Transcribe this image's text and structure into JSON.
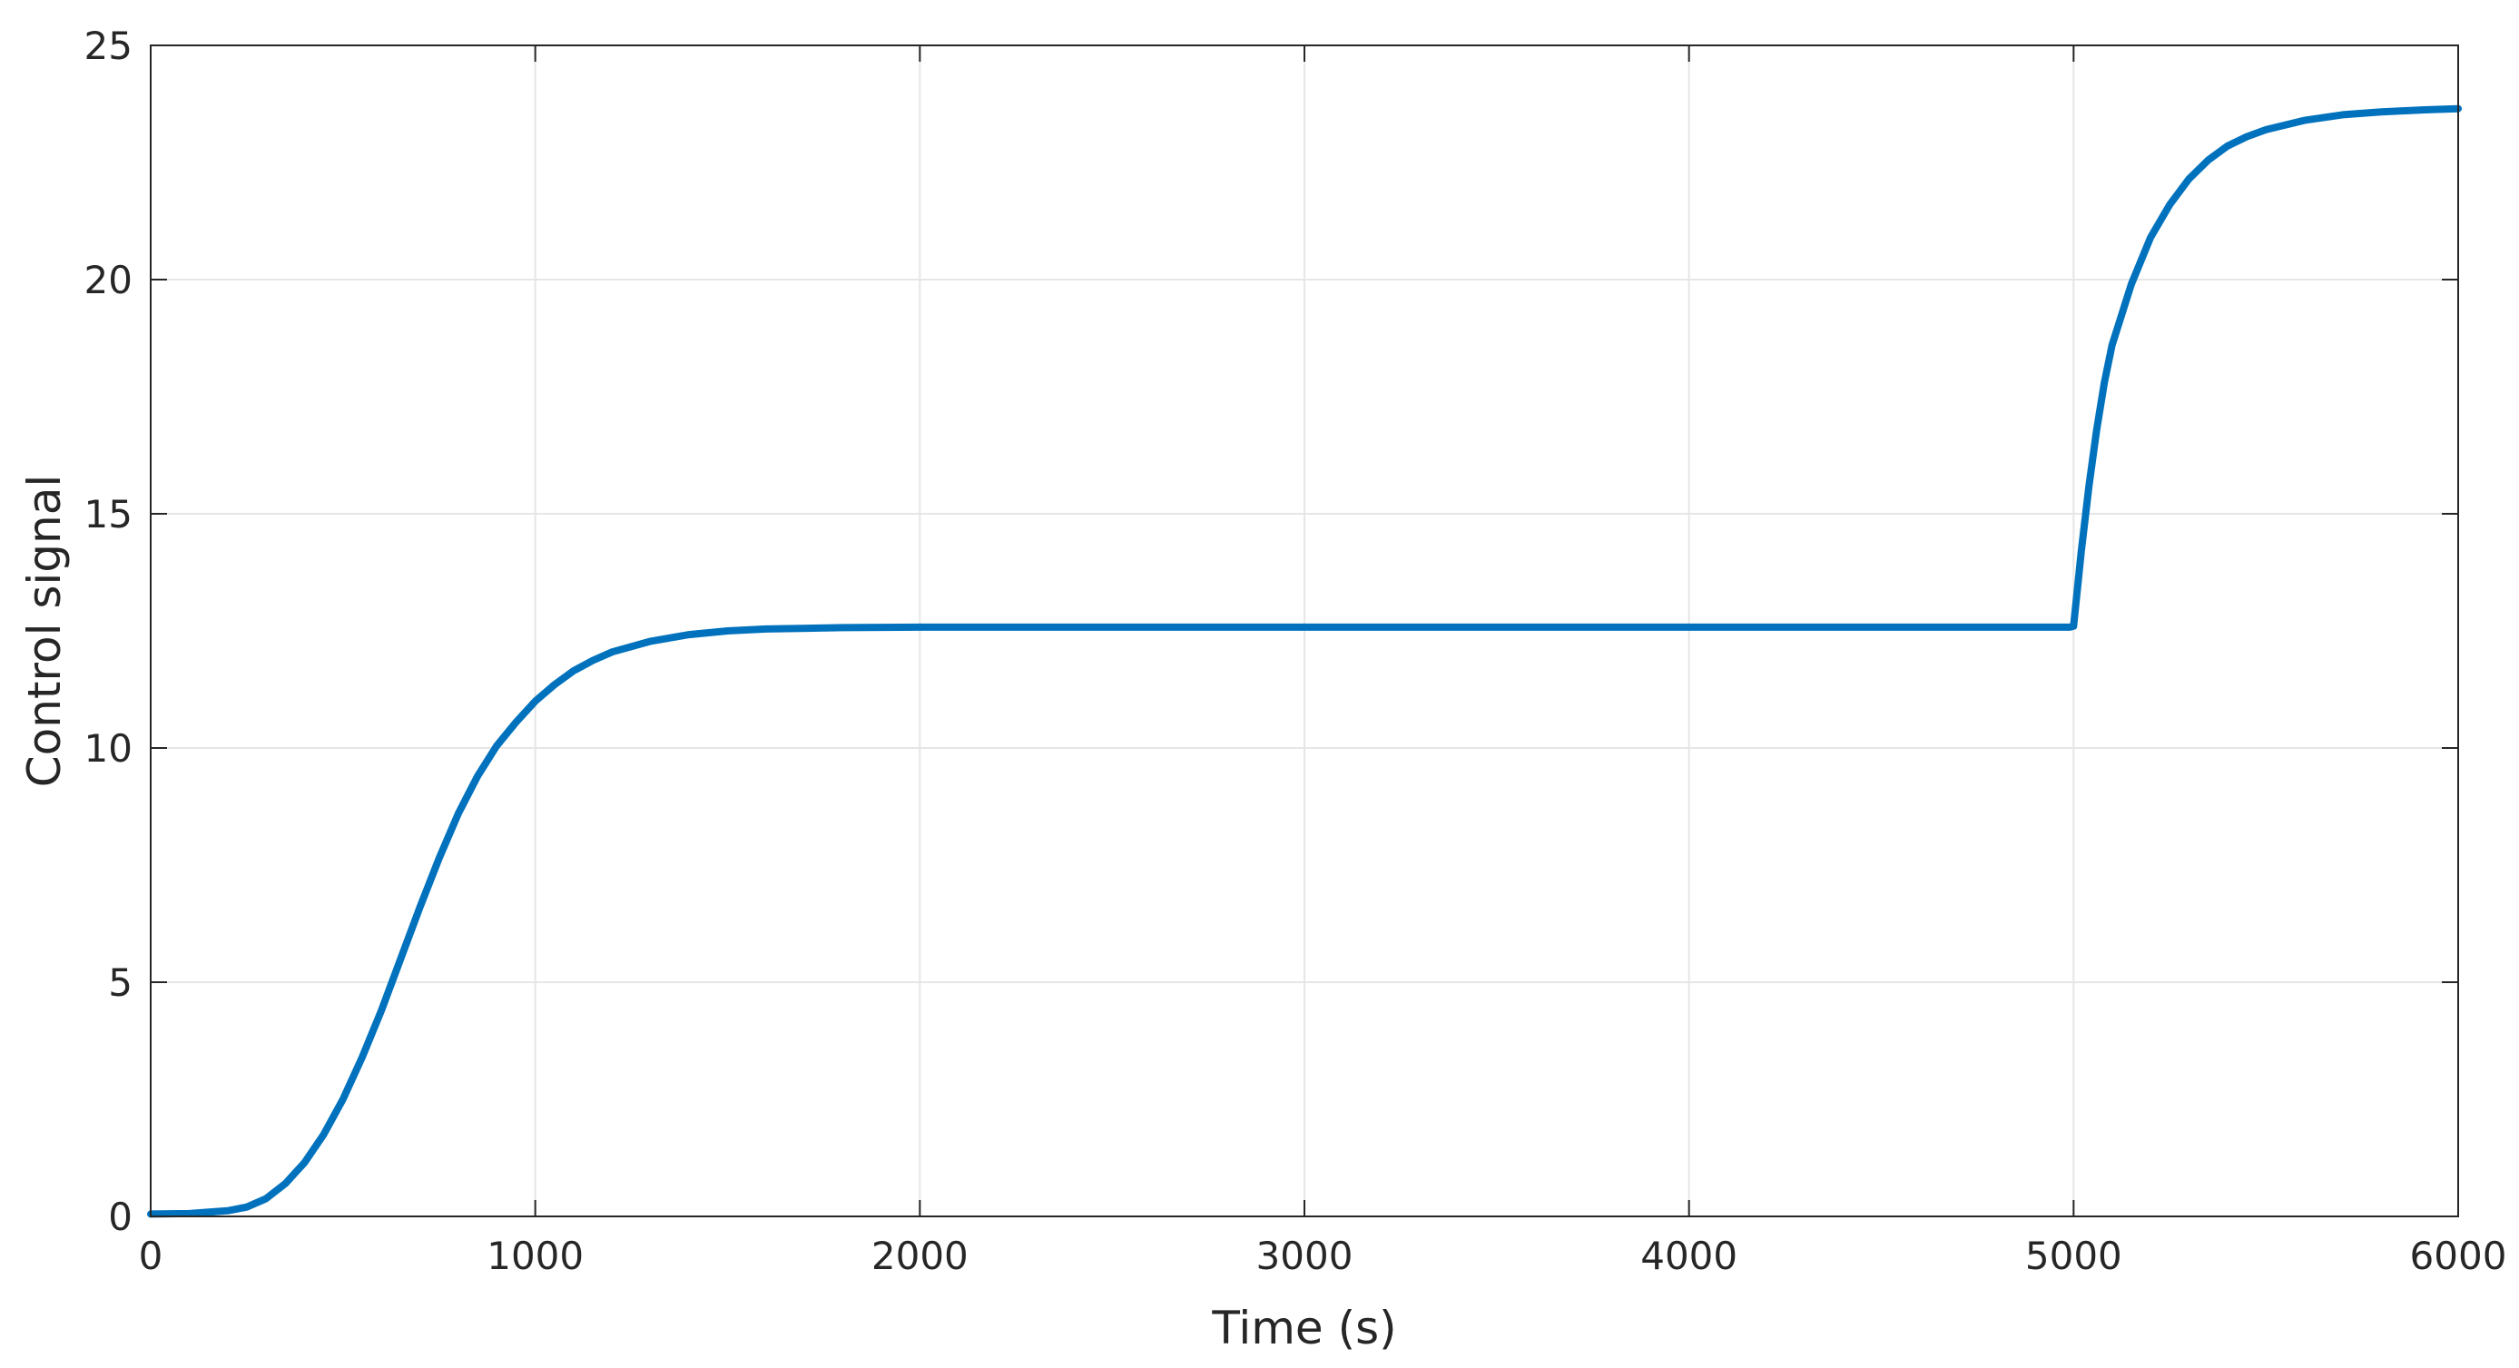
{
  "chart_data": {
    "type": "line",
    "title": "",
    "xlabel": "Time (s)",
    "ylabel": "Control signal",
    "xlim": [
      0,
      6000
    ],
    "ylim": [
      0,
      25
    ],
    "xticks": [
      0,
      1000,
      2000,
      3000,
      4000,
      5000,
      6000
    ],
    "xtick_labels": [
      "0",
      "1000",
      "2000",
      "3000",
      "4000",
      "5000",
      "6000"
    ],
    "yticks": [
      0,
      5,
      10,
      15,
      20,
      25
    ],
    "ytick_labels": [
      "0",
      "5",
      "10",
      "15",
      "20",
      "25"
    ],
    "grid": true,
    "legend": "none",
    "colors": {
      "line": "#0072BD",
      "axes": "#262626",
      "grid": "#e6e6e6"
    },
    "series": [
      {
        "x": [
          0,
          100,
          200,
          250,
          300,
          350,
          400,
          450,
          500,
          550,
          600,
          650,
          700,
          750,
          800,
          850,
          900,
          950,
          1000,
          1050,
          1100,
          1150,
          1200,
          1300,
          1400,
          1500,
          1600,
          1800,
          2000,
          2500,
          3000,
          4000,
          4990,
          5000,
          5020,
          5040,
          5060,
          5080,
          5100,
          5150,
          5200,
          5250,
          5300,
          5350,
          5400,
          5450,
          5500,
          5600,
          5700,
          5800,
          5900,
          6000
        ],
        "y": [
          0.05,
          0.06,
          0.12,
          0.2,
          0.38,
          0.7,
          1.15,
          1.75,
          2.5,
          3.4,
          4.4,
          5.5,
          6.6,
          7.65,
          8.6,
          9.4,
          10.05,
          10.55,
          11.0,
          11.35,
          11.65,
          11.87,
          12.05,
          12.28,
          12.42,
          12.5,
          12.54,
          12.57,
          12.58,
          12.58,
          12.58,
          12.58,
          12.58,
          12.6,
          14.2,
          15.6,
          16.8,
          17.8,
          18.6,
          19.9,
          20.9,
          21.6,
          22.15,
          22.55,
          22.85,
          23.05,
          23.2,
          23.4,
          23.52,
          23.58,
          23.62,
          23.65
        ]
      }
    ]
  }
}
